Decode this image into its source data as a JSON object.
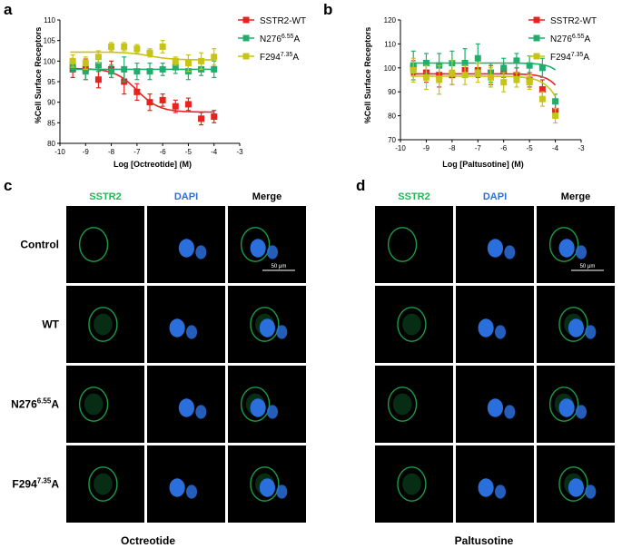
{
  "panels": {
    "a": "a",
    "b": "b",
    "c": "c",
    "d": "d"
  },
  "colors": {
    "wt": "#e8231f",
    "n276": "#1fae6e",
    "f294": "#c7c418",
    "green": "#1db954",
    "blue": "#2a6fdb",
    "axis": "#000000",
    "micro_bg": "#000000"
  },
  "chart_data": [
    {
      "type": "line",
      "panel": "a",
      "title": "",
      "xlabel": "Log [Octreotide] (M)",
      "ylabel": "%Cell Surface Receptors",
      "xlim": [
        -10,
        -3
      ],
      "ylim": [
        80,
        110
      ],
      "xticks": [
        -10,
        -9,
        -8,
        -7,
        -6,
        -5,
        -4,
        -3
      ],
      "yticks": [
        80,
        85,
        90,
        95,
        100,
        105,
        110
      ],
      "legend_position": "top-right",
      "series": [
        {
          "name": "SSTR2-WT",
          "color_key": "wt",
          "x": [
            -9.5,
            -9,
            -8.5,
            -8,
            -7.5,
            -7,
            -6.5,
            -6,
            -5.5,
            -5,
            -4.5,
            -4
          ],
          "y": [
            98,
            98,
            95.5,
            98,
            95,
            92.5,
            90,
            90.5,
            89,
            89.5,
            86,
            86.5
          ],
          "err": [
            2,
            2.5,
            2,
            2,
            3,
            2,
            2,
            1.5,
            1.5,
            1.5,
            1.5,
            1.5
          ],
          "fit": {
            "top": 98.2,
            "bottom": 87.6,
            "logEC50": -7.0,
            "hill": 1.0
          }
        },
        {
          "name": "N276^6.55A",
          "color_key": "n276",
          "x": [
            -9.5,
            -9,
            -8.5,
            -8,
            -7.5,
            -7,
            -6.5,
            -6,
            -5.5,
            -5,
            -4.5,
            -4
          ],
          "y": [
            99,
            97.5,
            99,
            97.5,
            98,
            97.5,
            97.5,
            98,
            98.5,
            97.5,
            98,
            98
          ],
          "err": [
            1.5,
            2,
            1.5,
            1.5,
            3,
            2,
            2,
            1.5,
            1.5,
            2,
            1.5,
            2
          ],
          "fit": {
            "top": 98,
            "bottom": 98,
            "logEC50": -7,
            "hill": 1
          }
        },
        {
          "name": "F294^7.35A",
          "color_key": "f294",
          "x": [
            -9.5,
            -9,
            -8.5,
            -8,
            -7.5,
            -7,
            -6.5,
            -6,
            -5.5,
            -5,
            -4.5,
            -4
          ],
          "y": [
            100,
            99.5,
            101,
            103.5,
            103.5,
            103,
            102,
            103.5,
            100,
            99.5,
            100,
            101
          ],
          "err": [
            1.5,
            1.5,
            1.5,
            1,
            1,
            1,
            1,
            1.5,
            1,
            2,
            2,
            2
          ],
          "fit": {
            "top": 102.2,
            "bottom": 100.3,
            "logEC50": -6.5,
            "hill": 1
          }
        }
      ]
    },
    {
      "type": "line",
      "panel": "b",
      "title": "",
      "xlabel": "Log [Paltusotine] (M)",
      "ylabel": "%Cell Surface Receptors",
      "xlim": [
        -10,
        -3
      ],
      "ylim": [
        70,
        120
      ],
      "xticks": [
        -10,
        -9,
        -8,
        -7,
        -6,
        -5,
        -4,
        -3
      ],
      "yticks": [
        70,
        80,
        90,
        100,
        110,
        120
      ],
      "legend_position": "top-right",
      "series": [
        {
          "name": "SSTR2-WT",
          "color_key": "wt",
          "x": [
            -9.5,
            -9,
            -8.5,
            -8,
            -7.5,
            -7,
            -6.5,
            -6,
            -5.5,
            -5,
            -4.5,
            -4
          ],
          "y": [
            100,
            98,
            97,
            97,
            99,
            99,
            97,
            99,
            97,
            95,
            91,
            82
          ],
          "err": [
            3,
            4,
            5,
            4,
            3,
            3,
            4,
            3,
            3,
            3,
            4,
            3
          ],
          "fit": {
            "top": 97.5,
            "bottom": 50,
            "logEC50": -3.2,
            "hill": 1.2
          }
        },
        {
          "name": "N276^6.55A",
          "color_key": "n276",
          "x": [
            -9.5,
            -9,
            -8.5,
            -8,
            -7.5,
            -7,
            -6.5,
            -6,
            -5.5,
            -5,
            -4.5,
            -4
          ],
          "y": [
            101,
            102,
            101,
            102,
            102,
            104,
            98,
            100,
            103,
            101,
            100,
            86
          ],
          "err": [
            6,
            4,
            5,
            5,
            6,
            6,
            4,
            4,
            3,
            4,
            4,
            3
          ],
          "fit": {
            "top": 102,
            "bottom": 50,
            "logEC50": -3.05,
            "hill": 1.3
          }
        },
        {
          "name": "F294^7.35A",
          "color_key": "f294",
          "x": [
            -9.5,
            -9,
            -8.5,
            -8,
            -7.5,
            -7,
            -6.5,
            -6,
            -5.5,
            -5,
            -4.5,
            -4
          ],
          "y": [
            99,
            96,
            95,
            98,
            97,
            98,
            96,
            94,
            95,
            94,
            87,
            80
          ],
          "err": [
            5,
            5,
            6,
            5,
            4,
            4,
            4,
            4,
            3,
            3,
            3,
            3
          ],
          "fit": {
            "top": 96.5,
            "bottom": 50,
            "logEC50": -3.4,
            "hill": 1.1
          }
        }
      ]
    }
  ],
  "legend": [
    {
      "base": "SSTR2-WT",
      "sup": "",
      "tail": "",
      "color_key": "wt"
    },
    {
      "base": "N276",
      "sup": "6.55",
      "tail": "A",
      "color_key": "n276"
    },
    {
      "base": "F294",
      "sup": "7.35",
      "tail": "A",
      "color_key": "f294"
    }
  ],
  "micro": {
    "column_headers": [
      {
        "label": "SSTR2",
        "color_key": "green"
      },
      {
        "label": "DAPI",
        "color_key": "blue"
      },
      {
        "label": "Merge",
        "color_key": "axis"
      }
    ],
    "c_rows": [
      {
        "base": "Control",
        "sup": "",
        "tail": ""
      },
      {
        "base": "WT",
        "sup": "",
        "tail": ""
      },
      {
        "base": "N276",
        "sup": "6.55",
        "tail": "A"
      },
      {
        "base": "F294",
        "sup": "7.35",
        "tail": "A"
      }
    ],
    "c_caption": "Octreotide",
    "d_caption": "Paltusotine",
    "scale_bar": "50 μm"
  }
}
